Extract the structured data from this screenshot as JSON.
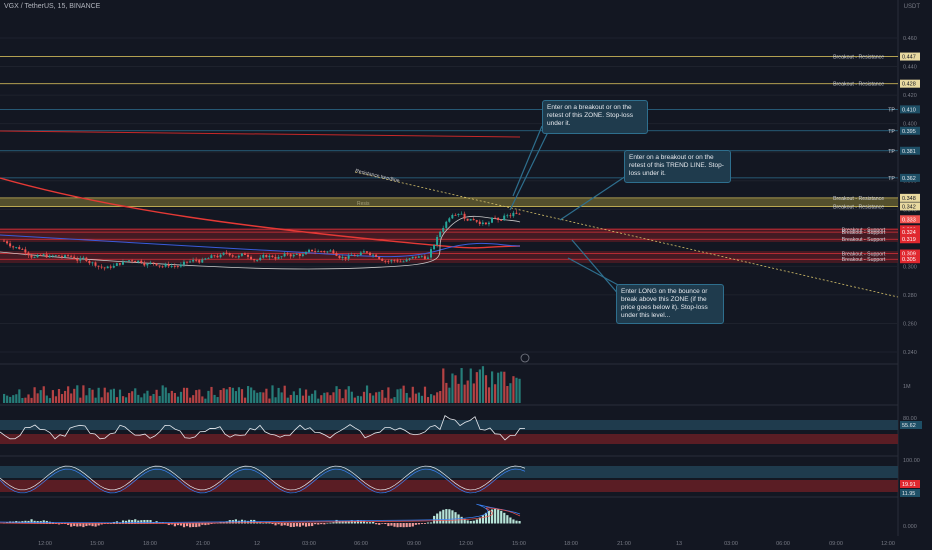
{
  "symbol": "VGX / TetherUS, 15, BINANCE",
  "currency": "USDT",
  "chart_data": {
    "type": "candlestick",
    "y_ticks": [
      "0.460",
      "0.440",
      "0.420",
      "0.400",
      "0.380",
      "0.360",
      "0.340",
      "0.320",
      "0.300",
      "0.280",
      "0.260",
      "0.240"
    ],
    "x_ticks": [
      "12:00",
      "15:00",
      "18:00",
      "21:00",
      "12",
      "03:00",
      "06:00",
      "09:00",
      "12:00",
      "15:00",
      "18:00",
      "21:00",
      "13",
      "03:00",
      "06:00",
      "09:00",
      "12:00"
    ],
    "resistance_levels": [
      {
        "label": "Breakout - Resistance",
        "price": "0.447",
        "y": 0.447
      },
      {
        "label": "Breakout - Resistance",
        "price": "0.428",
        "y": 0.428
      },
      {
        "label": "Breakout - Resistance",
        "price": "0.348",
        "y": 0.348
      },
      {
        "label": "Breakout - Resistance",
        "price": "0.342",
        "y": 0.342
      }
    ],
    "tp_levels": [
      {
        "label": "TP",
        "price": "0.410",
        "y": 0.41
      },
      {
        "label": "TP",
        "price": "0.395",
        "y": 0.395
      },
      {
        "label": "TP",
        "price": "0.381",
        "y": 0.381
      },
      {
        "label": "TP",
        "price": "0.362",
        "y": 0.362
      }
    ],
    "support_levels": [
      {
        "label": "Breakout - Support",
        "price": "0.326",
        "y": 0.326
      },
      {
        "label": "Breakout - Support",
        "price": "0.324",
        "y": 0.324
      },
      {
        "label": "Breakout - Support",
        "price": "0.319",
        "y": 0.319
      },
      {
        "label": "Breakout - Support",
        "price": "0.309",
        "y": 0.309
      },
      {
        "label": "Breakout - Support",
        "price": "0.305",
        "y": 0.305
      }
    ],
    "current_price": "0.333",
    "trendline_label": "Resistance trendline",
    "zone_label": "Resis",
    "notes": [
      "Enter on a breakout or on the retest of this ZONE. Stop-loss under it.",
      "Enter on a breakout or on the retest of this TREND LINE. Stop-loss under it.",
      "Enter LONG on the bounce or break above this ZONE (if the price goes below it). Stop-loss under this level..."
    ],
    "volume_label": "1M",
    "rsi": {
      "label": "80.00",
      "value": "55.62"
    },
    "stoch": {
      "label": "100.00",
      "values": [
        "19.91",
        "11.95"
      ]
    },
    "macd": {
      "label": "0.000"
    }
  }
}
